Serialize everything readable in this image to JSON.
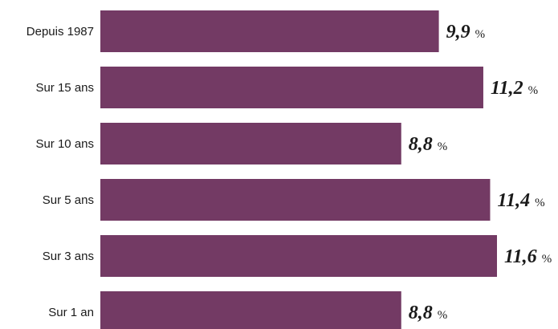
{
  "chart_data": {
    "type": "bar",
    "orientation": "horizontal",
    "categories": [
      "Depuis 1987",
      "Sur 15 ans",
      "Sur 10 ans",
      "Sur 5 ans",
      "Sur 3 ans",
      "Sur 1 an"
    ],
    "values": [
      9.9,
      11.2,
      8.8,
      11.4,
      11.6,
      8.8
    ],
    "value_labels": [
      "9,9",
      "11,2",
      "8,8",
      "11,4",
      "11,6",
      "8,8"
    ],
    "unit": "%",
    "title": "",
    "xlabel": "",
    "ylabel": "",
    "xlim": [
      0,
      11.6
    ],
    "grid": false,
    "legend": "none",
    "colors": {
      "bar": "#733a64",
      "text": "#1a1a1a",
      "background": "#ffffff"
    }
  }
}
